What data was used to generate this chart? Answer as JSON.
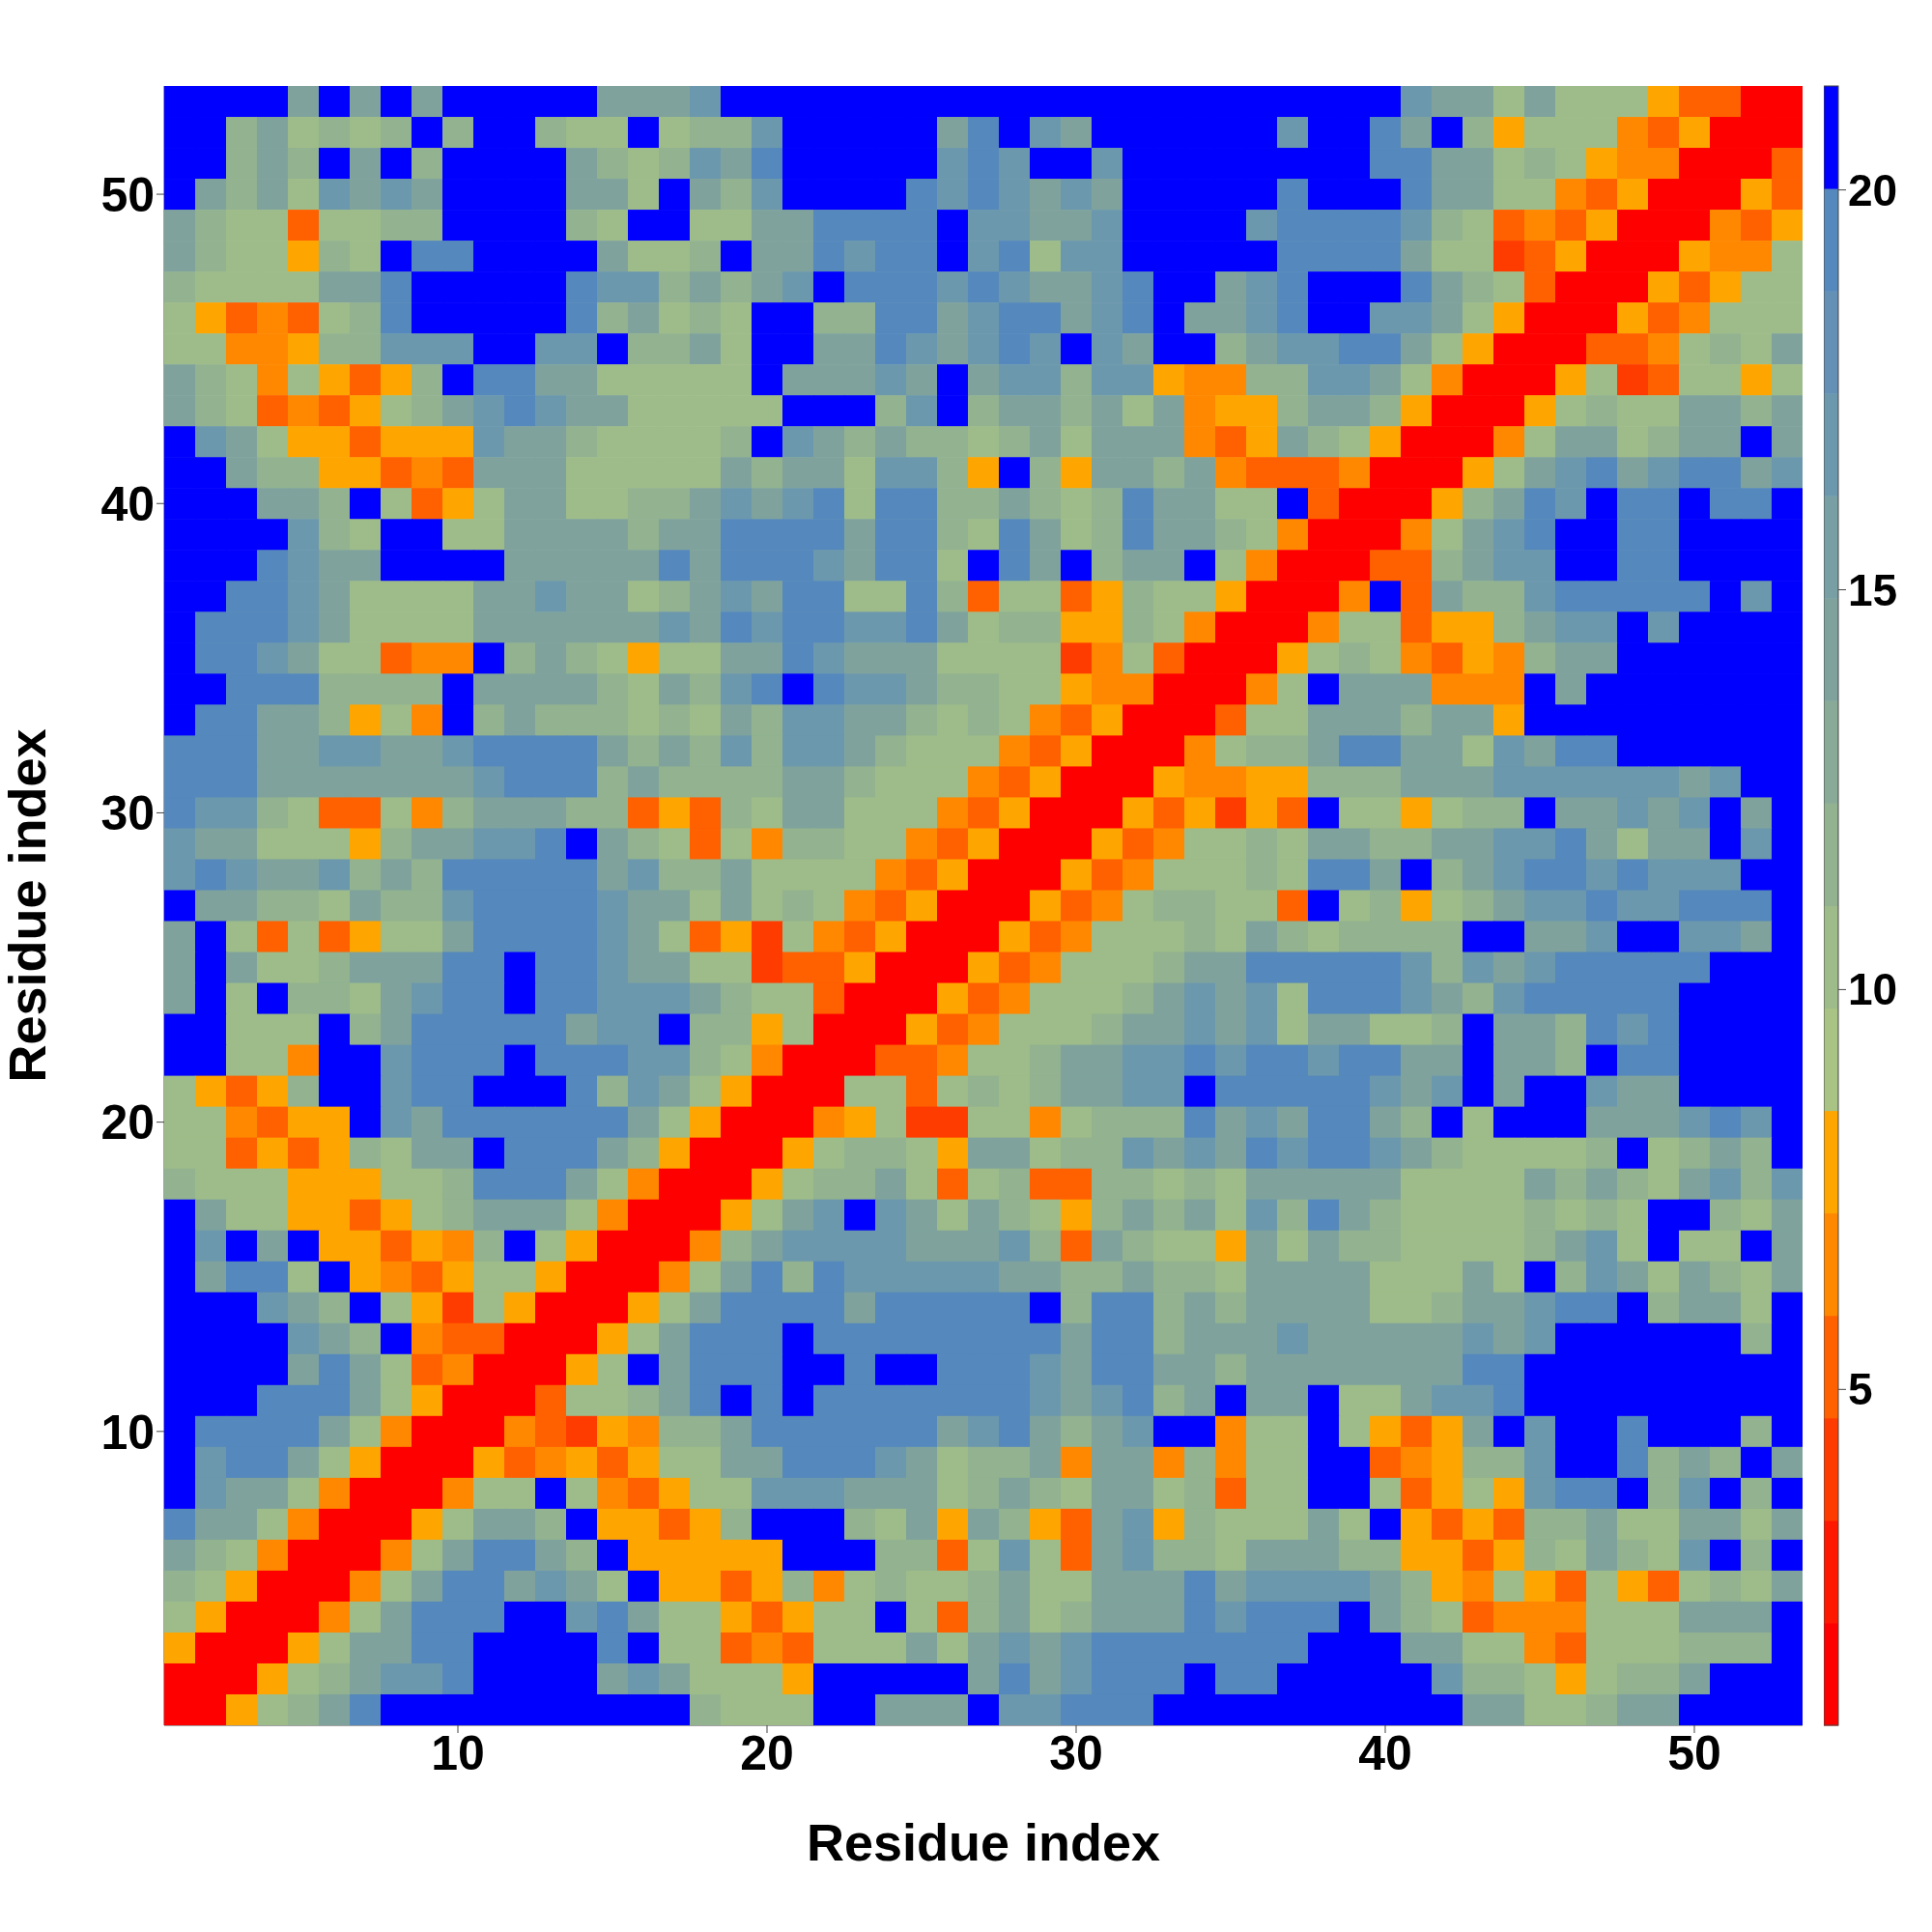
{
  "chart_data": {
    "type": "heatmap",
    "xlabel": "Residue index",
    "ylabel": "Residue index",
    "categories": [
      null,
      null,
      null,
      null,
      null,
      null,
      null,
      null,
      null,
      "10",
      null,
      null,
      null,
      null,
      null,
      null,
      null,
      null,
      null,
      "20",
      null,
      null,
      null,
      null,
      null,
      null,
      null,
      null,
      null,
      "30",
      null,
      null,
      null,
      null,
      null,
      null,
      null,
      null,
      null,
      "40",
      null,
      null,
      null,
      null,
      null,
      null,
      null,
      null,
      null,
      "50",
      null,
      null,
      null
    ],
    "y_categories": [
      null,
      null,
      null,
      "50",
      null,
      null,
      null,
      null,
      null,
      null,
      null,
      null,
      null,
      "40",
      null,
      null,
      null,
      null,
      null,
      null,
      null,
      null,
      null,
      "30",
      null,
      null,
      null,
      null,
      null,
      null,
      null,
      null,
      null,
      "20",
      null,
      null,
      null,
      null,
      null,
      null,
      null,
      null,
      null,
      "10",
      null,
      null,
      null,
      null,
      null,
      null,
      null,
      null,
      null
    ],
    "clim": [
      0.8,
      21.3
    ],
    "cticks": [
      5,
      10,
      15,
      20
    ],
    "colors": [
      "#ff0000",
      "#ff1800",
      "#ff3c00",
      "#ff6000",
      "#ff8800",
      "#ffa500",
      "#a8c383",
      "#9ebc89",
      "#92b290",
      "#88aa96",
      "#7fa39c",
      "#78a0a4",
      "#6c98ad",
      "#6490b5",
      "#5588bc",
      "#0000ff"
    ],
    "cells": [
      [
        21,
        21,
        21,
        21,
        14,
        21,
        14,
        21,
        14,
        21,
        21,
        21,
        21,
        21,
        14,
        14,
        14,
        17,
        21,
        21,
        21,
        21,
        21,
        21,
        21,
        21,
        21,
        21,
        21,
        21,
        21,
        21,
        21,
        21,
        21,
        21,
        21,
        21,
        21,
        21,
        17,
        14,
        14,
        10,
        14,
        10,
        10,
        10,
        8,
        5,
        5,
        2,
        2
      ],
      [
        21,
        21,
        12,
        14,
        10,
        12,
        10,
        12,
        21,
        12,
        21,
        21,
        12,
        10,
        10,
        21,
        10,
        12,
        12,
        17,
        21,
        21,
        21,
        21,
        21,
        14,
        19,
        21,
        17,
        14,
        21,
        21,
        21,
        21,
        21,
        21,
        17,
        21,
        21,
        19,
        14,
        21,
        12,
        8,
        10,
        10,
        10,
        6.5,
        5,
        8,
        2,
        2,
        2
      ],
      [
        21,
        21,
        12,
        14,
        12,
        21,
        14,
        21,
        12,
        21,
        21,
        21,
        21,
        14,
        12,
        10,
        12,
        17,
        14,
        19,
        21,
        21,
        21,
        21,
        21,
        17,
        19,
        17,
        21,
        21,
        17,
        21,
        21,
        21,
        21,
        21,
        21,
        21,
        21,
        19,
        19,
        14,
        14,
        10,
        12,
        10,
        8,
        6.5,
        6.5,
        2,
        2,
        2,
        5
      ],
      [
        21,
        14,
        12,
        14,
        10,
        17,
        14,
        17,
        14,
        21,
        21,
        21,
        21,
        14,
        14,
        10,
        21,
        14,
        12,
        17,
        21,
        21,
        21,
        21,
        19,
        17,
        19,
        17,
        14,
        17,
        14,
        21,
        21,
        21,
        21,
        21,
        19,
        21,
        21,
        21,
        19,
        14,
        14,
        10,
        10,
        6.5,
        5,
        8,
        2,
        2,
        2,
        8,
        5
      ],
      [
        14,
        12,
        10,
        10,
        5,
        10,
        10,
        12,
        12,
        21,
        21,
        21,
        21,
        12,
        10,
        21,
        21,
        10,
        10,
        14,
        14,
        19,
        19,
        19,
        19,
        21,
        17,
        17,
        14,
        14,
        17,
        21,
        21,
        21,
        21,
        17,
        19,
        19,
        19,
        19,
        17,
        12,
        10,
        5,
        6.5,
        5,
        8,
        2,
        2,
        2,
        6.5,
        5,
        8
      ],
      [
        14,
        12,
        10,
        10,
        8,
        12,
        10,
        21,
        19,
        19,
        21,
        21,
        21,
        21,
        14,
        10,
        10,
        12,
        21,
        14,
        14,
        19,
        17,
        19,
        19,
        21,
        17,
        19,
        10,
        17,
        17,
        21,
        21,
        21,
        21,
        21,
        19,
        19,
        19,
        19,
        14,
        10,
        10,
        4,
        5,
        8,
        2,
        2,
        2,
        8,
        6.5,
        6.5,
        10
      ],
      [
        12,
        10,
        10,
        10,
        10,
        14,
        14,
        19,
        21,
        21,
        21,
        21,
        21,
        19,
        17,
        17,
        12,
        14,
        12,
        14,
        17,
        21,
        19,
        19,
        19,
        17,
        19,
        17,
        14,
        14,
        17,
        19,
        21,
        21,
        14,
        17,
        19,
        21,
        21,
        21,
        19,
        14,
        12,
        10,
        5,
        2,
        2,
        2,
        8,
        5,
        8,
        10,
        10
      ],
      [
        10,
        8,
        5,
        6.5,
        5,
        10,
        12,
        19,
        21,
        21,
        21,
        21,
        21,
        19,
        12,
        14,
        10,
        12,
        10,
        21,
        21,
        12,
        12,
        19,
        19,
        14,
        17,
        19,
        19,
        14,
        17,
        19,
        21,
        14,
        14,
        17,
        19,
        21,
        21,
        17,
        17,
        14,
        10,
        8,
        2,
        2,
        2,
        8,
        5,
        6.5,
        10,
        10,
        10
      ],
      [
        10,
        10,
        6.5,
        6.5,
        8,
        12,
        12,
        17,
        17,
        17,
        21,
        21,
        17,
        17,
        21,
        12,
        12,
        14,
        10,
        21,
        21,
        14,
        14,
        19,
        17,
        14,
        17,
        19,
        17,
        21,
        17,
        14,
        21,
        21,
        12,
        14,
        17,
        17,
        19,
        19,
        14,
        10,
        8,
        2,
        2,
        2,
        5,
        5,
        6.5,
        10,
        12,
        10,
        14
      ],
      [
        14,
        12,
        10,
        6.5,
        10,
        8,
        5,
        8,
        12,
        21,
        19,
        19,
        14,
        14,
        10,
        10,
        10,
        10,
        10,
        21,
        14,
        14,
        14,
        17,
        14,
        21,
        14,
        17,
        17,
        12,
        17,
        17,
        8,
        6.5,
        6.5,
        12,
        12,
        17,
        17,
        14,
        10,
        6.5,
        2,
        2,
        2,
        8,
        10,
        4,
        5,
        10,
        10,
        8,
        10
      ],
      [
        14,
        12,
        10,
        5,
        6.5,
        5,
        8,
        10,
        12,
        14,
        17,
        19,
        17,
        14,
        14,
        10,
        10,
        10,
        10,
        10,
        21,
        21,
        21,
        12,
        17,
        21,
        12,
        14,
        14,
        12,
        14,
        10,
        14,
        6.5,
        8,
        8,
        12,
        14,
        14,
        12,
        8,
        2,
        2,
        2,
        8,
        10,
        12,
        10,
        10,
        14,
        14,
        12,
        14
      ],
      [
        21,
        17,
        14,
        10,
        8,
        8,
        5,
        8,
        8,
        8,
        17,
        14,
        14,
        12,
        10,
        10,
        10,
        10,
        12,
        21,
        17,
        14,
        12,
        14,
        12,
        12,
        10,
        12,
        14,
        10,
        14,
        14,
        14,
        6.5,
        5,
        8,
        14,
        12,
        10,
        8,
        2,
        2,
        2,
        6.5,
        10,
        14,
        14,
        10,
        12,
        14,
        14,
        21,
        14
      ],
      [
        21,
        21,
        14,
        12,
        12,
        8,
        8,
        5,
        6.5,
        5,
        14,
        14,
        14,
        10,
        10,
        10,
        10,
        10,
        14,
        12,
        14,
        14,
        10,
        17,
        17,
        12,
        8,
        21,
        12,
        8,
        14,
        14,
        12,
        14,
        6.5,
        5,
        5,
        5,
        6.5,
        2,
        2,
        2,
        8,
        10,
        14,
        17,
        19,
        14,
        17,
        19,
        19,
        14,
        17
      ],
      [
        21,
        21,
        21,
        14,
        14,
        12,
        21,
        10,
        5,
        8,
        10,
        14,
        14,
        10,
        10,
        12,
        12,
        14,
        17,
        14,
        17,
        19,
        10,
        19,
        19,
        12,
        12,
        14,
        12,
        10,
        12,
        19,
        14,
        14,
        10,
        10,
        21,
        5,
        2,
        2,
        2,
        8,
        12,
        14,
        19,
        17,
        21,
        19,
        19,
        21,
        19,
        19,
        21
      ],
      [
        21,
        21,
        21,
        21,
        17,
        12,
        10,
        21,
        21,
        10,
        10,
        14,
        14,
        14,
        14,
        12,
        14,
        14,
        19,
        19,
        19,
        19,
        14,
        19,
        19,
        12,
        10,
        19,
        14,
        10,
        12,
        19,
        14,
        14,
        12,
        10,
        6.5,
        2,
        2,
        2,
        6.5,
        10,
        14,
        17,
        19,
        21,
        21,
        19,
        19,
        21,
        21,
        21,
        21
      ],
      [
        21,
        21,
        21,
        19,
        17,
        14,
        14,
        21,
        21,
        21,
        21,
        14,
        14,
        14,
        14,
        14,
        19,
        14,
        19,
        19,
        19,
        17,
        14,
        19,
        19,
        10,
        21,
        19,
        14,
        21,
        12,
        14,
        14,
        21,
        10,
        6.5,
        2,
        2,
        2,
        5,
        5,
        12,
        14,
        17,
        17,
        21,
        21,
        19,
        19,
        21,
        21,
        21,
        21
      ],
      [
        21,
        21,
        19,
        19,
        17,
        14,
        10,
        10,
        10,
        10,
        14,
        14,
        17,
        14,
        14,
        10,
        12,
        14,
        17,
        14,
        19,
        19,
        10,
        10,
        19,
        12,
        5,
        10,
        10,
        5,
        8,
        12,
        10,
        10,
        8,
        2,
        2,
        2,
        6.5,
        21,
        5,
        14,
        12,
        12,
        17,
        19,
        19,
        19,
        19,
        19,
        21,
        17,
        21
      ],
      [
        21,
        19,
        19,
        19,
        17,
        14,
        10,
        10,
        10,
        10,
        14,
        14,
        14,
        14,
        14,
        14,
        17,
        14,
        19,
        17,
        19,
        19,
        17,
        17,
        19,
        14,
        10,
        12,
        12,
        8,
        8,
        12,
        10,
        6.5,
        2,
        2,
        2,
        6.5,
        10,
        10,
        5,
        8,
        8,
        12,
        14,
        17,
        17,
        21,
        17,
        21,
        21,
        21,
        21
      ],
      [
        21,
        19,
        19,
        17,
        14,
        10,
        10,
        5,
        6.5,
        6.5,
        21,
        12,
        14,
        12,
        10,
        8,
        10,
        10,
        14,
        14,
        19,
        17,
        14,
        14,
        14,
        10,
        10,
        10,
        10,
        4,
        6.5,
        10,
        5,
        2,
        2,
        2,
        8,
        10,
        12,
        10,
        6.5,
        5,
        8,
        6.5,
        12,
        14,
        14,
        21,
        21,
        21,
        21,
        21,
        21
      ],
      [
        21,
        21,
        19,
        19,
        19,
        12,
        12,
        12,
        12,
        21,
        14,
        14,
        14,
        14,
        12,
        10,
        14,
        12,
        17,
        19,
        21,
        19,
        17,
        17,
        14,
        12,
        12,
        10,
        10,
        8,
        6.5,
        6.5,
        2,
        2,
        2,
        6.5,
        10,
        21,
        14,
        14,
        14,
        6.5,
        6.5,
        6.5,
        21,
        14,
        21,
        21,
        21,
        21,
        21,
        21,
        21
      ],
      [
        21,
        19,
        19,
        14,
        14,
        12,
        8,
        10,
        6.5,
        21,
        12,
        14,
        12,
        12,
        12,
        10,
        12,
        10,
        14,
        12,
        17,
        17,
        14,
        14,
        12,
        10,
        12,
        10,
        6.5,
        5,
        8,
        2,
        2,
        2,
        5,
        10,
        10,
        14,
        14,
        14,
        12,
        14,
        14,
        8,
        21,
        21,
        21,
        21,
        21,
        21,
        21,
        21,
        21
      ],
      [
        19,
        19,
        19,
        14,
        14,
        17,
        17,
        14,
        14,
        17,
        19,
        19,
        19,
        19,
        14,
        12,
        14,
        12,
        17,
        12,
        17,
        17,
        14,
        12,
        10,
        10,
        10,
        6.5,
        5,
        8,
        2,
        2,
        2,
        6.5,
        10,
        12,
        12,
        14,
        19,
        19,
        14,
        14,
        10,
        17,
        14,
        19,
        19,
        21,
        21,
        21,
        21,
        21,
        21
      ],
      [
        19,
        19,
        19,
        14,
        14,
        14,
        14,
        14,
        14,
        14,
        17,
        19,
        19,
        19,
        12,
        14,
        12,
        12,
        12,
        12,
        14,
        14,
        12,
        10,
        10,
        10,
        6.5,
        5,
        8,
        2,
        2,
        2,
        8,
        6.5,
        6.5,
        8,
        8,
        12,
        12,
        12,
        14,
        14,
        14,
        17,
        17,
        17,
        17,
        17,
        17,
        14,
        17,
        21,
        21
      ],
      [
        19,
        17,
        17,
        12,
        10,
        5,
        5,
        10,
        6.5,
        12,
        14,
        14,
        14,
        12,
        12,
        5,
        8,
        5,
        12,
        10,
        14,
        14,
        10,
        10,
        10,
        6.5,
        5,
        8,
        2,
        2,
        2,
        8,
        5,
        8,
        4,
        8,
        5,
        21,
        10,
        10,
        8,
        10,
        12,
        12,
        21,
        14,
        14,
        17,
        14,
        17,
        21,
        14,
        21
      ],
      [
        17,
        14,
        14,
        10,
        10,
        10,
        8,
        12,
        14,
        14,
        17,
        17,
        19,
        21,
        14,
        12,
        10,
        5,
        10,
        6.5,
        12,
        12,
        10,
        10,
        6.5,
        5,
        8,
        2,
        2,
        2,
        8,
        5,
        6.5,
        10,
        10,
        12,
        10,
        14,
        14,
        12,
        12,
        14,
        14,
        17,
        17,
        19,
        14,
        10,
        14,
        14,
        21,
        17,
        21
      ],
      [
        17,
        19,
        17,
        14,
        14,
        17,
        12,
        14,
        12,
        19,
        19,
        19,
        19,
        19,
        14,
        17,
        12,
        12,
        14,
        10,
        10,
        10,
        10,
        6.5,
        5,
        8,
        2,
        2,
        2,
        8,
        5,
        6.5,
        10,
        10,
        10,
        12,
        10,
        19,
        19,
        14,
        21,
        12,
        14,
        17,
        19,
        19,
        17,
        19,
        17,
        17,
        17,
        21,
        21
      ],
      [
        21,
        14,
        14,
        12,
        12,
        10,
        14,
        12,
        12,
        17,
        19,
        19,
        19,
        19,
        17,
        14,
        14,
        10,
        14,
        10,
        12,
        10,
        6.5,
        5,
        8,
        2,
        2,
        2,
        8,
        5,
        6.5,
        10,
        12,
        12,
        10,
        10,
        5,
        21,
        10,
        12,
        8,
        10,
        12,
        14,
        17,
        17,
        19,
        17,
        17,
        19,
        19,
        19,
        21
      ],
      [
        14,
        21,
        10,
        5,
        10,
        5,
        8,
        10,
        10,
        14,
        19,
        19,
        19,
        19,
        17,
        14,
        10,
        5,
        8,
        4,
        10,
        6.5,
        5,
        8,
        2,
        2,
        2,
        8,
        5,
        6.5,
        10,
        10,
        10,
        12,
        10,
        14,
        12,
        10,
        12,
        12,
        12,
        12,
        21,
        21,
        14,
        14,
        17,
        21,
        21,
        17,
        17,
        14,
        21
      ],
      [
        14,
        21,
        14,
        10,
        10,
        12,
        14,
        14,
        14,
        19,
        19,
        21,
        19,
        19,
        17,
        14,
        14,
        10,
        10,
        4,
        5,
        5,
        8,
        2,
        2,
        2,
        8,
        5,
        6.5,
        10,
        10,
        10,
        12,
        14,
        14,
        19,
        19,
        19,
        19,
        19,
        17,
        12,
        17,
        14,
        17,
        19,
        19,
        19,
        19,
        19,
        21,
        21,
        21
      ],
      [
        14,
        21,
        10,
        21,
        12,
        12,
        10,
        14,
        17,
        19,
        19,
        21,
        19,
        19,
        17,
        17,
        17,
        14,
        12,
        10,
        10,
        5,
        2,
        2,
        2,
        8,
        5,
        6.5,
        10,
        10,
        10,
        12,
        14,
        17,
        14,
        17,
        10,
        19,
        19,
        19,
        17,
        14,
        12,
        17,
        19,
        19,
        19,
        19,
        19,
        21,
        21,
        21,
        21
      ],
      [
        21,
        21,
        10,
        10,
        10,
        21,
        12,
        14,
        19,
        19,
        19,
        19,
        19,
        14,
        17,
        17,
        21,
        12,
        12,
        8,
        10,
        2,
        2,
        2,
        8,
        5,
        6.5,
        10,
        10,
        10,
        12,
        14,
        14,
        17,
        14,
        17,
        10,
        14,
        14,
        10,
        10,
        12,
        21,
        14,
        14,
        12,
        19,
        17,
        19,
        21,
        21,
        21,
        21
      ],
      [
        21,
        21,
        10,
        10,
        6.5,
        21,
        21,
        17,
        19,
        19,
        19,
        21,
        19,
        19,
        19,
        17,
        17,
        12,
        10,
        6.5,
        2,
        2,
        2,
        5,
        5,
        6.5,
        10,
        10,
        12,
        14,
        14,
        17,
        17,
        19,
        17,
        19,
        19,
        17,
        19,
        19,
        14,
        14,
        21,
        14,
        14,
        12,
        21,
        19,
        19,
        21,
        21,
        21,
        21
      ],
      [
        10,
        8,
        5,
        8,
        12,
        21,
        21,
        17,
        19,
        19,
        21,
        21,
        21,
        19,
        12,
        17,
        14,
        10,
        8,
        2,
        2,
        2,
        10,
        10,
        5,
        10,
        12,
        10,
        12,
        14,
        14,
        17,
        17,
        21,
        19,
        19,
        19,
        19,
        19,
        17,
        14,
        17,
        21,
        14,
        21,
        21,
        17,
        14,
        14,
        21,
        21,
        21,
        21
      ],
      [
        10,
        10,
        6.5,
        5,
        8,
        8,
        21,
        17,
        14,
        19,
        19,
        19,
        19,
        19,
        19,
        14,
        10,
        8,
        2,
        2,
        2,
        6.5,
        8,
        10,
        4,
        4,
        10,
        10,
        6.5,
        10,
        12,
        12,
        12,
        19,
        14,
        17,
        14,
        19,
        19,
        14,
        12,
        21,
        10,
        21,
        21,
        21,
        14,
        14,
        14,
        17,
        19,
        17,
        21
      ],
      [
        10,
        10,
        5,
        8,
        5,
        8,
        12,
        10,
        14,
        14,
        21,
        19,
        19,
        19,
        14,
        12,
        8,
        2,
        2,
        2,
        8,
        10,
        12,
        12,
        10,
        8,
        14,
        14,
        10,
        12,
        12,
        17,
        14,
        17,
        14,
        19,
        17,
        19,
        19,
        17,
        14,
        12,
        10,
        10,
        10,
        10,
        12,
        21,
        10,
        12,
        14,
        12,
        21
      ],
      [
        12,
        10,
        10,
        10,
        8,
        8,
        8,
        10,
        10,
        12,
        19,
        19,
        19,
        14,
        10,
        6.5,
        2,
        2,
        2,
        8,
        10,
        12,
        12,
        14,
        10,
        5,
        10,
        12,
        5,
        5,
        12,
        12,
        10,
        12,
        10,
        14,
        14,
        14,
        14,
        14,
        10,
        10,
        10,
        10,
        14,
        12,
        14,
        12,
        10,
        14,
        17,
        12,
        17
      ],
      [
        21,
        14,
        10,
        10,
        8,
        8,
        5,
        8,
        10,
        12,
        14,
        14,
        14,
        10,
        6.5,
        2,
        2,
        2,
        8,
        10,
        14,
        17,
        21,
        17,
        14,
        10,
        14,
        12,
        10,
        8,
        12,
        14,
        12,
        14,
        10,
        17,
        12,
        19,
        14,
        12,
        10,
        10,
        10,
        10,
        12,
        10,
        12,
        10,
        21,
        21,
        12,
        10,
        14
      ],
      [
        21,
        17,
        21,
        14,
        21,
        8,
        8,
        5,
        8,
        6.5,
        12,
        21,
        10,
        8,
        2,
        2,
        2,
        6.5,
        12,
        14,
        17,
        17,
        17,
        17,
        14,
        14,
        14,
        17,
        12,
        5,
        14,
        12,
        10,
        10,
        8,
        14,
        10,
        14,
        12,
        12,
        10,
        10,
        10,
        10,
        12,
        14,
        17,
        10,
        21,
        10,
        10,
        21,
        14
      ],
      [
        21,
        14,
        19,
        19,
        10,
        21,
        8,
        6.5,
        5,
        8,
        10,
        10,
        8,
        2,
        2,
        2,
        6.5,
        10,
        14,
        19,
        12,
        19,
        17,
        17,
        17,
        17,
        17,
        14,
        14,
        12,
        12,
        14,
        12,
        12,
        10,
        14,
        14,
        14,
        14,
        10,
        10,
        10,
        14,
        10,
        21,
        12,
        17,
        14,
        10,
        14,
        12,
        10,
        14
      ],
      [
        21,
        21,
        21,
        17,
        14,
        12,
        21,
        10,
        8,
        4,
        10,
        8,
        2,
        2,
        2,
        8,
        10,
        14,
        19,
        19,
        19,
        19,
        14,
        19,
        19,
        19,
        19,
        19,
        21,
        12,
        19,
        19,
        12,
        14,
        12,
        14,
        14,
        14,
        14,
        10,
        10,
        12,
        14,
        14,
        17,
        19,
        19,
        21,
        12,
        14,
        14,
        10,
        21
      ],
      [
        21,
        21,
        21,
        21,
        17,
        14,
        12,
        21,
        6.5,
        5,
        5,
        2,
        2,
        2,
        8,
        10,
        14,
        19,
        19,
        19,
        21,
        19,
        19,
        19,
        19,
        19,
        19,
        19,
        19,
        14,
        19,
        19,
        12,
        14,
        14,
        14,
        17,
        14,
        14,
        14,
        14,
        14,
        17,
        14,
        17,
        21,
        21,
        21,
        21,
        21,
        21,
        12,
        21
      ],
      [
        21,
        21,
        21,
        21,
        14,
        19,
        14,
        10,
        5,
        6.5,
        2,
        2,
        2,
        8,
        10,
        21,
        14,
        19,
        19,
        19,
        21,
        21,
        19,
        21,
        21,
        19,
        19,
        19,
        17,
        14,
        19,
        19,
        14,
        14,
        12,
        14,
        14,
        14,
        14,
        14,
        14,
        14,
        19,
        19,
        21,
        21,
        21,
        21,
        21,
        21,
        21,
        21,
        21
      ],
      [
        21,
        21,
        21,
        19,
        19,
        19,
        14,
        10,
        8,
        2,
        2,
        2,
        5,
        10,
        10,
        12,
        14,
        19,
        21,
        19,
        21,
        19,
        19,
        19,
        19,
        19,
        19,
        19,
        17,
        14,
        17,
        19,
        12,
        14,
        21,
        14,
        14,
        21,
        10,
        10,
        14,
        17,
        17,
        19,
        21,
        21,
        21,
        21,
        21,
        21,
        21,
        21,
        21
      ],
      [
        21,
        19,
        19,
        19,
        19,
        14,
        10,
        6.5,
        2,
        2,
        2,
        6.5,
        5,
        4,
        8,
        6.5,
        12,
        12,
        14,
        19,
        19,
        19,
        19,
        19,
        19,
        14,
        17,
        19,
        14,
        12,
        14,
        17,
        21,
        21,
        6.5,
        10,
        10,
        21,
        10,
        8,
        5,
        8,
        14,
        21,
        17,
        21,
        21,
        19,
        21,
        21,
        21,
        12,
        21
      ],
      [
        21,
        17,
        19,
        19,
        14,
        10,
        8,
        2,
        2,
        2,
        8,
        5,
        6.5,
        8,
        5,
        8,
        10,
        10,
        14,
        14,
        19,
        19,
        19,
        17,
        14,
        10,
        12,
        12,
        14,
        6.5,
        14,
        14,
        6.5,
        12,
        6.5,
        10,
        10,
        21,
        21,
        5,
        6.5,
        8,
        12,
        12,
        17,
        21,
        21,
        19,
        12,
        14,
        12,
        21,
        14
      ],
      [
        21,
        17,
        14,
        14,
        10,
        6.5,
        2,
        2,
        2,
        6.5,
        10,
        10,
        21,
        10,
        6.5,
        5,
        8,
        10,
        10,
        17,
        17,
        17,
        14,
        14,
        14,
        10,
        12,
        14,
        12,
        10,
        14,
        14,
        10,
        12,
        5,
        10,
        10,
        21,
        21,
        10,
        5,
        8,
        10,
        8,
        17,
        19,
        19,
        21,
        12,
        17,
        21,
        12,
        21
      ],
      [
        19,
        14,
        14,
        10,
        6.5,
        2,
        2,
        2,
        8,
        10,
        14,
        14,
        12,
        21,
        8,
        8,
        5,
        8,
        12,
        21,
        21,
        21,
        12,
        10,
        14,
        8,
        14,
        12,
        8,
        5,
        14,
        17,
        8,
        12,
        10,
        10,
        10,
        14,
        10,
        21,
        8,
        5,
        8,
        5,
        12,
        12,
        14,
        10,
        10,
        14,
        14,
        10,
        14
      ],
      [
        14,
        12,
        10,
        6.5,
        2,
        2,
        2,
        6.5,
        10,
        14,
        19,
        19,
        14,
        12,
        21,
        8,
        8,
        8,
        8,
        8,
        21,
        21,
        21,
        12,
        12,
        5,
        10,
        17,
        10,
        5,
        14,
        17,
        12,
        12,
        10,
        14,
        14,
        14,
        12,
        12,
        8,
        8,
        5,
        8,
        12,
        10,
        14,
        12,
        10,
        17,
        21,
        12,
        21
      ],
      [
        12,
        10,
        8,
        2,
        2,
        2,
        6.5,
        10,
        14,
        19,
        19,
        14,
        17,
        14,
        10,
        21,
        8,
        8,
        5,
        8,
        12,
        6.5,
        10,
        12,
        10,
        10,
        12,
        14,
        10,
        10,
        14,
        14,
        14,
        19,
        14,
        17,
        17,
        17,
        17,
        14,
        12,
        8,
        6.5,
        10,
        8,
        5,
        10,
        8,
        5,
        10,
        12,
        10,
        14
      ],
      [
        10,
        8,
        2,
        2,
        2,
        6.5,
        10,
        14,
        19,
        19,
        19,
        21,
        21,
        17,
        19,
        14,
        10,
        10,
        8,
        5,
        8,
        10,
        10,
        21,
        10,
        5,
        12,
        14,
        10,
        12,
        14,
        14,
        14,
        19,
        17,
        19,
        19,
        19,
        21,
        14,
        12,
        10,
        5,
        6.5,
        6.5,
        6.5,
        10,
        10,
        10,
        14,
        14,
        14,
        21
      ],
      [
        8,
        2,
        2,
        2,
        8,
        10,
        14,
        14,
        19,
        19,
        21,
        21,
        21,
        21,
        19,
        21,
        10,
        10,
        5,
        6.5,
        5,
        10,
        10,
        10,
        14,
        10,
        14,
        17,
        14,
        17,
        19,
        19,
        19,
        19,
        19,
        19,
        19,
        21,
        21,
        21,
        14,
        14,
        10,
        10,
        6.5,
        5,
        10,
        10,
        10,
        12,
        12,
        12,
        21
      ],
      [
        2,
        2,
        2,
        8,
        10,
        12,
        14,
        17,
        17,
        19,
        21,
        21,
        21,
        21,
        14,
        17,
        14,
        10,
        10,
        10,
        8,
        21,
        21,
        21,
        21,
        21,
        14,
        19,
        14,
        17,
        19,
        19,
        19,
        21,
        19,
        19,
        21,
        21,
        21,
        21,
        21,
        17,
        12,
        12,
        10,
        8,
        10,
        12,
        12,
        14,
        21,
        21,
        21
      ],
      [
        2,
        2,
        8,
        10,
        12,
        14,
        19,
        21,
        21,
        21,
        21,
        21,
        21,
        21,
        21,
        21,
        21,
        12,
        10,
        10,
        10,
        21,
        21,
        14,
        14,
        14,
        21,
        17,
        17,
        19,
        19,
        19,
        21,
        21,
        21,
        21,
        21,
        21,
        21,
        21,
        21,
        21,
        14,
        14,
        10,
        10,
        12,
        14,
        14,
        21,
        21,
        21,
        21
      ]
    ]
  }
}
